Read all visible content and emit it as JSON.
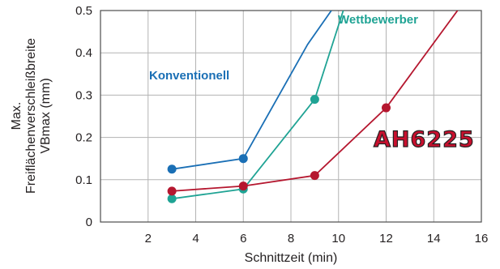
{
  "chart_data": {
    "type": "line",
    "title": "",
    "xlabel": "Schnittzeit (min)",
    "ylabel_lines": [
      "Max.",
      "Freiflächenverschleißbreite",
      "VBmax (mm)"
    ],
    "xlim": [
      0,
      16
    ],
    "ylim": [
      0,
      0.5
    ],
    "x_ticks": [
      2,
      4,
      6,
      8,
      10,
      12,
      14,
      16
    ],
    "y_ticks": [
      0,
      0.1,
      0.2,
      0.3,
      0.4,
      0.5
    ],
    "y_tick_labels": [
      "0",
      "0.1",
      "0.2",
      "0.3",
      "0.4",
      "0.5"
    ],
    "grid": true,
    "series": [
      {
        "name": "Konventionell",
        "color": "#1a6fb5",
        "points": [
          [
            3,
            0.125
          ],
          [
            6,
            0.15
          ]
        ],
        "line_extension": [
          [
            8.7,
            0.42
          ],
          [
            9.7,
            0.5
          ]
        ]
      },
      {
        "name": "Wettbewerber",
        "color": "#1fa394",
        "points": [
          [
            3,
            0.055
          ],
          [
            6,
            0.078
          ],
          [
            9,
            0.29
          ]
        ],
        "line_extension": [
          [
            10.2,
            0.5
          ]
        ]
      },
      {
        "name": "AH6225",
        "color": "#b5172f",
        "points": [
          [
            3,
            0.073
          ],
          [
            6,
            0.085
          ],
          [
            9,
            0.11
          ],
          [
            12,
            0.27
          ]
        ],
        "line_extension": [
          [
            15,
            0.5
          ]
        ]
      }
    ]
  }
}
